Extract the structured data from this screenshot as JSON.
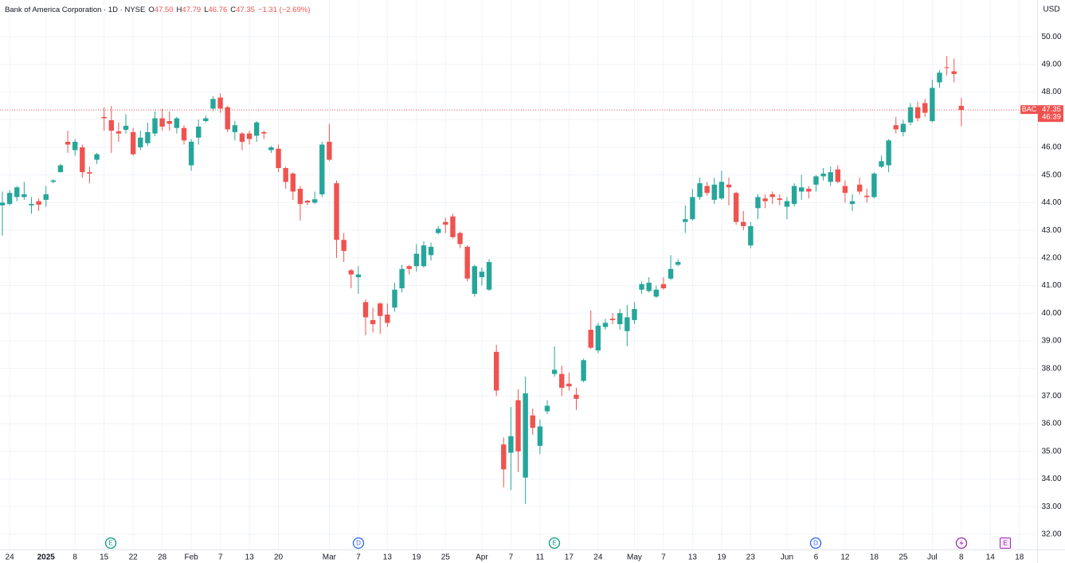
{
  "chart_data": {
    "type": "candlestick",
    "header": {
      "title": "Bank of America Corporation · 1D · NYSE",
      "ohlc": [
        {
          "label": "O",
          "value": "47.50"
        },
        {
          "label": "H",
          "value": "47.79"
        },
        {
          "label": "L",
          "value": "46.76"
        },
        {
          "label": "C",
          "value": "47.35"
        }
      ],
      "change": "−1.31 (−2.69%)"
    },
    "currency": "USD",
    "symbol": "BAC",
    "last_price": 47.35,
    "countdown": "46:39",
    "up_color": "#26a69a",
    "down_color": "#ef5350",
    "grid": true,
    "categories": [
      null,
      "24",
      null,
      null,
      null,
      null,
      "2025",
      null,
      null,
      null,
      "8",
      null,
      null,
      null,
      "15",
      null,
      null,
      null,
      "22",
      null,
      null,
      null,
      "28",
      null,
      null,
      null,
      "Feb",
      null,
      null,
      null,
      "7",
      null,
      null,
      null,
      "13",
      null,
      null,
      null,
      "20",
      null,
      null,
      null,
      null,
      null,
      null,
      "Mar",
      null,
      null,
      null,
      "7",
      null,
      null,
      null,
      "13",
      null,
      null,
      null,
      "19",
      null,
      null,
      null,
      "25",
      null,
      null,
      null,
      null,
      "Apr",
      null,
      null,
      null,
      "7",
      null,
      null,
      null,
      "11",
      null,
      null,
      null,
      "17",
      null,
      null,
      null,
      "24",
      null,
      null,
      null,
      null,
      "May",
      null,
      null,
      null,
      "7",
      null,
      null,
      null,
      "13",
      null,
      null,
      null,
      "19",
      null,
      null,
      null,
      "23",
      null,
      null,
      null,
      null,
      "Jun",
      null,
      null,
      null,
      "6",
      null,
      null,
      null,
      "12",
      null,
      null,
      null,
      "18",
      null,
      null,
      null,
      "25",
      null,
      null,
      null,
      "Jul",
      null,
      null,
      null,
      "8",
      null,
      null,
      null,
      "14",
      null,
      null,
      null,
      "18"
    ],
    "open": [
      43.9,
      43.95,
      44.2,
      44.2,
      43.9,
      44.05,
      44.1,
      44.75,
      45.1,
      46.2,
      45.9,
      46.0,
      45.1,
      45.55,
      47.1,
      46.98,
      46.58,
      46.63,
      46.55,
      46.0,
      46.15,
      46.5,
      47.05,
      46.95,
      46.7,
      46.7,
      45.35,
      46.35,
      46.95,
      47.4,
      47.8,
      47.45,
      46.55,
      46.5,
      46.5,
      46.42,
      46.55,
      45.9,
      45.95,
      45.25,
      45.05,
      44.5,
      44.07,
      44.0,
      44.3,
      46.2,
      44.7,
      42.65,
      41.55,
      41.3,
      40.4,
      39.75,
      40.35,
      39.95,
      40.2,
      40.9,
      41.7,
      41.7,
      41.7,
      42.1,
      42.9,
      43.3,
      43.5,
      42.9,
      42.4,
      40.7,
      41.3,
      40.85,
      38.6,
      35.25,
      34.95,
      36.85,
      34.05,
      36.3,
      35.2,
      36.45,
      37.8,
      37.8,
      37.45,
      37.05,
      37.55,
      39.4,
      38.65,
      39.5,
      39.8,
      39.6,
      39.35,
      39.75,
      40.85,
      40.8,
      40.6,
      41.05,
      41.25,
      41.75,
      43.3,
      43.4,
      44.2,
      44.6,
      44.1,
      44.15,
      44.65,
      44.35,
      43.3,
      42.45,
      43.8,
      44.15,
      44.3,
      44.15,
      43.85,
      43.95,
      44.4,
      44.5,
      44.65,
      44.95,
      44.75,
      45.2,
      44.6,
      43.95,
      44.65,
      44.25,
      44.2,
      45.3,
      45.35,
      46.8,
      46.55,
      46.9,
      47.45,
      47.6,
      46.95,
      48.35,
      48.9,
      48.75,
      47.5,
      null,
      null,
      null,
      null,
      null,
      null,
      null,
      null
    ],
    "high": [
      44.4,
      44.45,
      44.6,
      44.75,
      44.2,
      44.15,
      44.6,
      44.85,
      45.4,
      46.6,
      46.3,
      46.1,
      45.3,
      45.8,
      47.45,
      47.5,
      46.9,
      47.2,
      46.7,
      46.6,
      46.9,
      47.3,
      47.4,
      47.3,
      47.1,
      46.8,
      46.3,
      47.0,
      47.15,
      47.85,
      47.95,
      47.5,
      46.95,
      46.55,
      46.6,
      46.95,
      46.6,
      46.05,
      46.1,
      45.3,
      45.1,
      44.6,
      44.1,
      44.4,
      46.2,
      46.85,
      44.8,
      42.9,
      41.6,
      41.7,
      40.5,
      40.2,
      40.4,
      40.35,
      41.1,
      41.75,
      41.75,
      42.5,
      42.6,
      42.55,
      43.15,
      43.45,
      43.6,
      42.95,
      42.45,
      41.75,
      41.65,
      41.95,
      38.85,
      35.5,
      36.6,
      37.25,
      37.7,
      36.55,
      36.15,
      36.85,
      38.8,
      38.1,
      37.85,
      37.3,
      38.35,
      40.1,
      39.65,
      39.8,
      40.0,
      40.15,
      40.3,
      40.4,
      41.15,
      41.3,
      41.0,
      41.3,
      42.1,
      41.95,
      43.9,
      44.5,
      44.9,
      44.75,
      44.9,
      45.15,
      44.9,
      44.4,
      43.7,
      43.3,
      44.3,
      44.3,
      44.4,
      44.3,
      44.2,
      44.7,
      45.0,
      44.6,
      45.0,
      45.25,
      45.3,
      45.35,
      44.8,
      44.3,
      44.9,
      44.5,
      45.1,
      45.7,
      46.3,
      47.1,
      47.0,
      47.6,
      47.65,
      47.75,
      48.45,
      48.8,
      49.3,
      49.2,
      47.79,
      null,
      null,
      null,
      null,
      null,
      null,
      null,
      null
    ],
    "low": [
      42.8,
      43.9,
      44.05,
      44.1,
      43.6,
      43.7,
      43.85,
      44.7,
      45.1,
      45.8,
      45.7,
      44.9,
      44.7,
      45.4,
      46.6,
      45.8,
      46.2,
      46.5,
      45.7,
      45.9,
      46.05,
      46.4,
      46.6,
      46.6,
      46.5,
      46.1,
      45.15,
      46.1,
      46.9,
      47.3,
      47.25,
      46.55,
      46.25,
      45.9,
      46.1,
      46.2,
      46.3,
      45.8,
      45.1,
      44.5,
      44.1,
      43.35,
      43.9,
      43.95,
      44.2,
      45.5,
      42.0,
      41.85,
      40.9,
      40.7,
      39.2,
      39.3,
      39.25,
      39.5,
      40.05,
      40.75,
      41.4,
      41.5,
      41.65,
      41.9,
      42.85,
      42.9,
      42.7,
      42.35,
      41.15,
      40.6,
      41.0,
      40.8,
      37.0,
      33.7,
      33.6,
      34.25,
      33.1,
      35.6,
      34.9,
      36.35,
      37.7,
      37.0,
      37.2,
      36.5,
      37.5,
      38.7,
      38.55,
      39.4,
      39.6,
      39.4,
      38.8,
      39.6,
      40.7,
      40.75,
      40.55,
      40.85,
      41.2,
      41.7,
      42.9,
      43.35,
      44.1,
      44.25,
      43.95,
      44.1,
      43.9,
      43.2,
      43.0,
      42.35,
      43.4,
      43.8,
      43.95,
      43.9,
      43.4,
      43.85,
      44.1,
      44.15,
      44.4,
      44.8,
      44.6,
      44.7,
      44.0,
      43.7,
      44.3,
      44.0,
      44.15,
      45.25,
      45.1,
      46.5,
      46.4,
      46.8,
      46.95,
      47.1,
      46.9,
      48.15,
      48.6,
      48.35,
      46.76,
      null,
      null,
      null,
      null,
      null,
      null,
      null,
      null
    ],
    "close": [
      44.0,
      44.35,
      44.55,
      44.3,
      43.95,
      43.92,
      44.3,
      44.8,
      45.35,
      46.1,
      46.2,
      45.1,
      45.05,
      45.75,
      47.05,
      46.6,
      46.5,
      46.78,
      45.75,
      46.35,
      46.55,
      47.05,
      46.75,
      46.85,
      47.05,
      46.25,
      46.2,
      46.75,
      47.05,
      47.75,
      47.4,
      46.65,
      46.8,
      46.2,
      46.3,
      46.9,
      46.5,
      46.0,
      45.25,
      44.75,
      44.4,
      43.95,
      44.0,
      44.12,
      46.1,
      45.55,
      42.65,
      42.25,
      41.4,
      41.4,
      39.85,
      39.6,
      39.9,
      39.65,
      40.85,
      41.6,
      41.6,
      42.15,
      42.45,
      42.4,
      43.05,
      43.2,
      42.75,
      42.5,
      41.25,
      41.7,
      41.5,
      41.85,
      37.2,
      34.35,
      35.55,
      35.0,
      37.1,
      35.85,
      35.9,
      36.65,
      37.95,
      37.3,
      37.35,
      36.9,
      38.3,
      38.75,
      39.55,
      39.65,
      39.75,
      40.0,
      39.85,
      40.15,
      41.05,
      41.1,
      40.85,
      40.9,
      41.6,
      41.85,
      43.4,
      44.2,
      44.7,
      44.35,
      44.65,
      44.75,
      44.55,
      43.3,
      43.15,
      43.15,
      44.2,
      44.05,
      44.2,
      44.1,
      44.05,
      44.6,
      44.55,
      44.4,
      44.95,
      45.05,
      45.1,
      44.75,
      44.35,
      44.05,
      44.4,
      44.2,
      45.05,
      45.5,
      46.25,
      46.65,
      46.85,
      47.45,
      47.05,
      47.25,
      48.15,
      48.7,
      48.88,
      48.65,
      47.35,
      null,
      null,
      null,
      null,
      null,
      null,
      null,
      null
    ],
    "ylim": [
      31.45,
      51.33
    ],
    "yticks": [
      {
        "value": 32,
        "label": "32.00"
      },
      {
        "value": 33,
        "label": "33.00"
      },
      {
        "value": 34,
        "label": "34.00"
      },
      {
        "value": 35,
        "label": "35.00"
      },
      {
        "value": 36,
        "label": "36.00"
      },
      {
        "value": 37,
        "label": "37.00"
      },
      {
        "value": 38,
        "label": "38.00"
      },
      {
        "value": 39,
        "label": "39.00"
      },
      {
        "value": 40,
        "label": "40.00"
      },
      {
        "value": 41,
        "label": "41.00"
      },
      {
        "value": 42,
        "label": "42.00"
      },
      {
        "value": 43,
        "label": "43.00"
      },
      {
        "value": 44,
        "label": "44.00"
      },
      {
        "value": 45,
        "label": "45.00"
      },
      {
        "value": 46,
        "label": "46.00"
      },
      {
        "value": 47,
        "label": "47.00"
      },
      {
        "value": 48,
        "label": "48.00"
      },
      {
        "value": 49,
        "label": "49.00"
      },
      {
        "value": 50,
        "label": "50.00"
      }
    ],
    "events": [
      {
        "label": "E",
        "color": "#089981"
      },
      {
        "label": "D",
        "color": "#2962ff"
      },
      {
        "label": "E",
        "color": "#089981"
      },
      {
        "label": "D",
        "color": "#2962ff"
      },
      {
        "label": "E",
        "color": "#9c27b0"
      }
    ]
  }
}
